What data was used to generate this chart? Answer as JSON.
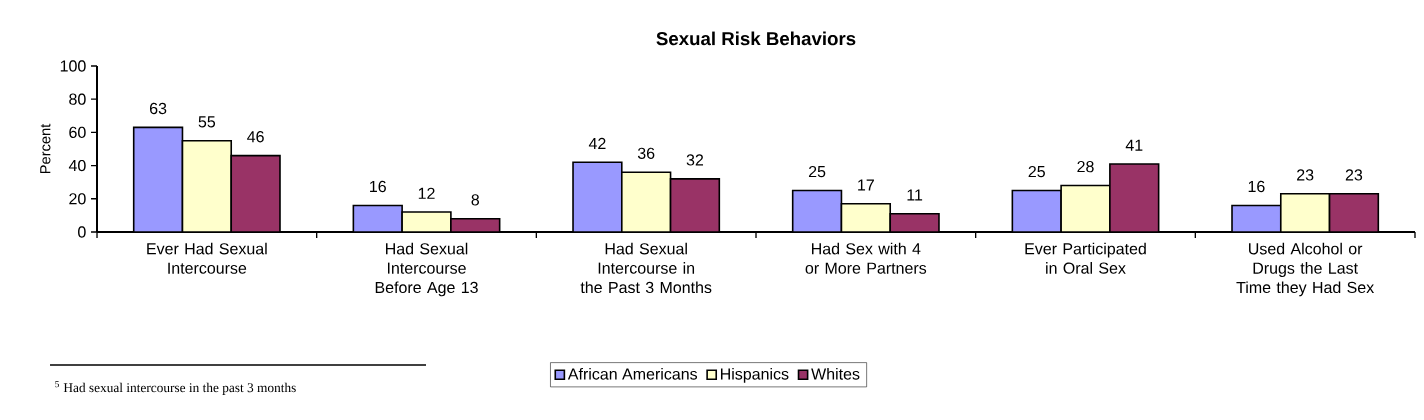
{
  "chart_data": {
    "type": "bar",
    "title": "Sexual Risk Behaviors",
    "ylabel": "Percent",
    "categories": [
      "Ever Had Sexual Intercourse",
      "Had Sexual Intercourse Before Age 13",
      "Had Sexual Intercourse in the Past 3 Months",
      "Had Sex with 4 or More Partners",
      "Ever Participated in Oral Sex",
      "Used Alcohol or Drugs the Last Time they Had Sex"
    ],
    "series": [
      {
        "name": "African Americans",
        "color": "#9999ff",
        "values": [
          63,
          16,
          42,
          25,
          25,
          16
        ]
      },
      {
        "name": "Hispanics",
        "color": "#ffffcc",
        "values": [
          55,
          12,
          36,
          17,
          28,
          23
        ]
      },
      {
        "name": "Whites",
        "color": "#993366",
        "values": [
          46,
          8,
          32,
          11,
          41,
          23
        ]
      }
    ],
    "ylim": [
      0,
      100
    ],
    "yticks": [
      0,
      20,
      40,
      60,
      80,
      100
    ],
    "data_labels": true,
    "legend": "bottom",
    "annotations": [
      "$^{5}$ Had sexual intercourse in the past 3 months"
    ]
  }
}
